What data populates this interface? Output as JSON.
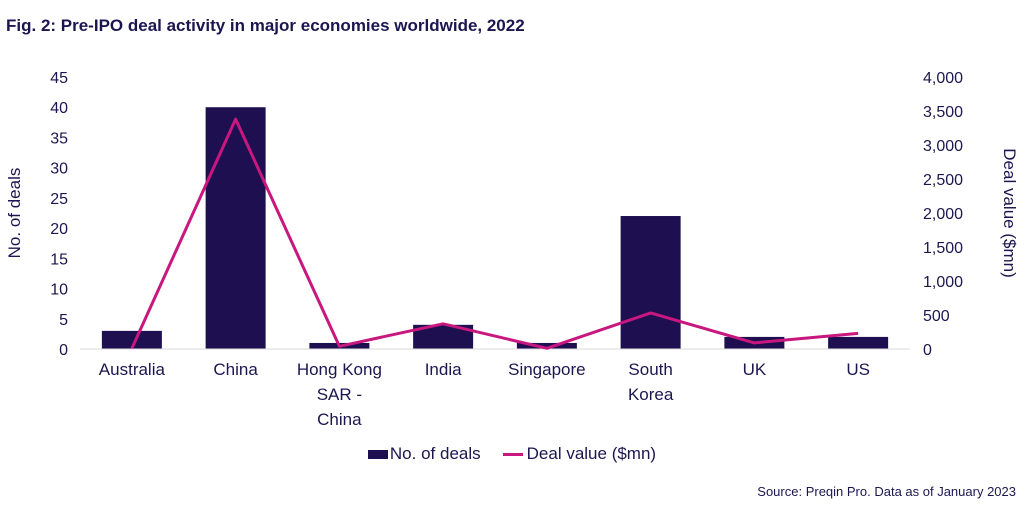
{
  "title": "Fig. 2: Pre-IPO deal activity in major economies worldwide, 2022",
  "source": "Source: Preqin Pro. Data as of January 2023",
  "colors": {
    "bars": "#1e1050",
    "line": "#c8177e",
    "text": "#1c1650"
  },
  "chart_data": {
    "type": "bar",
    "title": "Fig. 2: Pre-IPO deal activity in major economies worldwide, 2022",
    "categories": [
      [
        "Australia"
      ],
      [
        "China"
      ],
      [
        "Hong Kong",
        "SAR -",
        "China"
      ],
      [
        "India"
      ],
      [
        "Singapore"
      ],
      [
        "South",
        "Korea"
      ],
      [
        "UK"
      ],
      [
        "US"
      ]
    ],
    "series": [
      {
        "name": "No. of deals",
        "kind": "bar",
        "axis": "left",
        "values": [
          3,
          40,
          1,
          4,
          1,
          22,
          2,
          2
        ]
      },
      {
        "name": "Deal value ($mn)",
        "kind": "line",
        "axis": "right",
        "values": [
          10,
          3380,
          40,
          370,
          10,
          530,
          90,
          230
        ]
      }
    ],
    "ylabel_left": "No. of deals",
    "ylabel_right": "Deal value ($mn)",
    "ylim_left": [
      0,
      45
    ],
    "yticks_left": [
      "0",
      "5",
      "10",
      "15",
      "20",
      "25",
      "30",
      "35",
      "40",
      "45"
    ],
    "ylim_right": [
      0,
      4000
    ],
    "yticks_right": [
      "0",
      "500",
      "1,000",
      "1,500",
      "2,000",
      "2,500",
      "3,000",
      "3,500",
      "4,000"
    ],
    "grid": false,
    "legend": "bottom-center"
  }
}
